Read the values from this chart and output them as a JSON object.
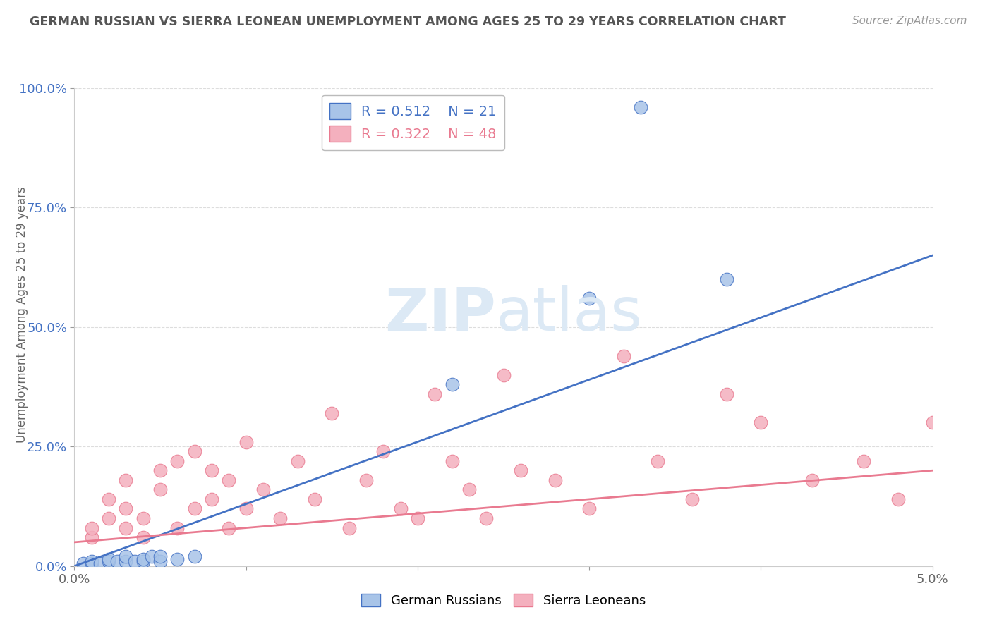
{
  "title": "GERMAN RUSSIAN VS SIERRA LEONEAN UNEMPLOYMENT AMONG AGES 25 TO 29 YEARS CORRELATION CHART",
  "source": "Source: ZipAtlas.com",
  "ylabel": "Unemployment Among Ages 25 to 29 years",
  "legend_blue_label": "German Russians",
  "legend_pink_label": "Sierra Leoneans",
  "blue_R": 0.512,
  "blue_N": 21,
  "pink_R": 0.322,
  "pink_N": 48,
  "blue_color": "#a8c4e8",
  "pink_color": "#f4b0be",
  "blue_line_color": "#4472c4",
  "pink_line_color": "#e97a90",
  "blue_scatter_x": [
    0.0005,
    0.001,
    0.001,
    0.0015,
    0.002,
    0.002,
    0.0025,
    0.003,
    0.003,
    0.0035,
    0.004,
    0.004,
    0.0045,
    0.005,
    0.005,
    0.006,
    0.007,
    0.022,
    0.03,
    0.033,
    0.038
  ],
  "blue_scatter_y": [
    0.005,
    0.005,
    0.01,
    0.005,
    0.01,
    0.015,
    0.01,
    0.01,
    0.02,
    0.01,
    0.01,
    0.015,
    0.02,
    0.01,
    0.02,
    0.015,
    0.02,
    0.38,
    0.56,
    0.96,
    0.6
  ],
  "pink_scatter_x": [
    0.001,
    0.001,
    0.002,
    0.002,
    0.003,
    0.003,
    0.003,
    0.004,
    0.004,
    0.005,
    0.005,
    0.006,
    0.006,
    0.007,
    0.007,
    0.008,
    0.008,
    0.009,
    0.009,
    0.01,
    0.01,
    0.011,
    0.012,
    0.013,
    0.014,
    0.015,
    0.016,
    0.017,
    0.018,
    0.019,
    0.02,
    0.021,
    0.022,
    0.023,
    0.024,
    0.025,
    0.026,
    0.028,
    0.03,
    0.032,
    0.034,
    0.036,
    0.038,
    0.04,
    0.043,
    0.046,
    0.048,
    0.05
  ],
  "pink_scatter_y": [
    0.06,
    0.08,
    0.1,
    0.14,
    0.08,
    0.12,
    0.18,
    0.1,
    0.06,
    0.16,
    0.2,
    0.08,
    0.22,
    0.12,
    0.24,
    0.14,
    0.2,
    0.08,
    0.18,
    0.12,
    0.26,
    0.16,
    0.1,
    0.22,
    0.14,
    0.32,
    0.08,
    0.18,
    0.24,
    0.12,
    0.1,
    0.36,
    0.22,
    0.16,
    0.1,
    0.4,
    0.2,
    0.18,
    0.12,
    0.44,
    0.22,
    0.14,
    0.36,
    0.3,
    0.18,
    0.22,
    0.14,
    0.3
  ],
  "blue_line_x0": 0.0,
  "blue_line_y0": 0.0,
  "blue_line_x1": 0.05,
  "blue_line_y1": 0.65,
  "pink_line_x0": 0.0,
  "pink_line_y0": 0.05,
  "pink_line_x1": 0.05,
  "pink_line_y1": 0.2,
  "xmin": 0.0,
  "xmax": 0.05,
  "ymin": 0.0,
  "ymax": 1.0,
  "ytick_values": [
    0.0,
    0.25,
    0.5,
    0.75,
    1.0
  ],
  "ytick_labels": [
    "0.0%",
    "25.0%",
    "50.0%",
    "75.0%",
    "100.0%"
  ],
  "grid_color": "#dddddd",
  "bg_color": "#ffffff",
  "title_color": "#555555",
  "axis_label_color": "#666666",
  "watermark_color": "#dce9f5"
}
